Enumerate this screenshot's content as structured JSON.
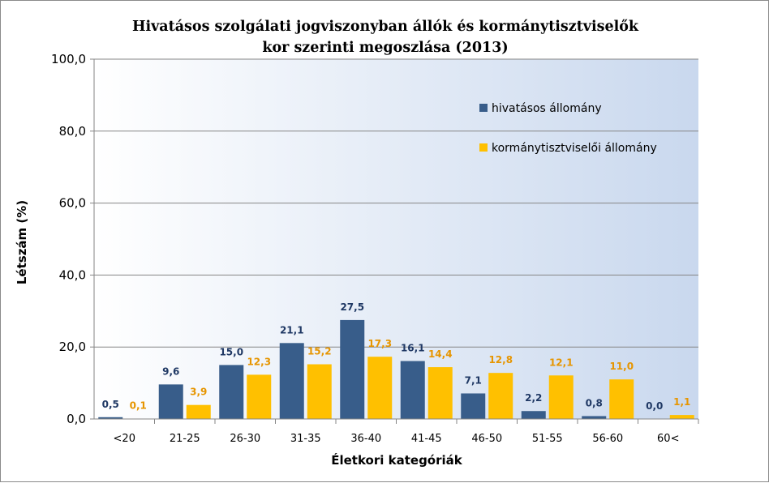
{
  "chart_data": {
    "type": "bar",
    "title_line1": "Hivatásos szolgálati jogviszonyban állók és kormánytisztviselők",
    "title_line2": "kor szerinti megoszlása (2013)",
    "xlabel": "Életkori kategóriák",
    "ylabel": "Létszám (%)",
    "ylim": [
      0,
      100
    ],
    "yticks": [
      "0,0",
      "20,0",
      "40,0",
      "60,0",
      "80,0",
      "100,0"
    ],
    "categories": [
      "<20",
      "21-25",
      "26-30",
      "31-35",
      "36-40",
      "41-45",
      "46-50",
      "51-55",
      "56-60",
      "60<"
    ],
    "series": [
      {
        "name": "hivatásos állomány",
        "color": "#385D8A",
        "labelColor": "#1F3864",
        "values": [
          0.5,
          9.6,
          15.0,
          21.1,
          27.5,
          16.1,
          7.1,
          2.2,
          0.8,
          0.0
        ],
        "labels": [
          "0,5",
          "9,6",
          "15,0",
          "21,1",
          "27,5",
          "16,1",
          "7,1",
          "2,2",
          "0,8",
          "0,0"
        ]
      },
      {
        "name": "kormánytisztviselői állomány",
        "color": "#FFC000",
        "labelColor": "#E69500",
        "values": [
          0.1,
          3.9,
          12.3,
          15.2,
          17.3,
          14.4,
          12.8,
          12.1,
          11.0,
          1.1
        ],
        "labels": [
          "0,1",
          "3,9",
          "12,3",
          "15,2",
          "17,3",
          "14,4",
          "12,8",
          "12,1",
          "11,0",
          "1,1"
        ]
      }
    ],
    "grid": true,
    "legend_position": "top-right",
    "background": "#DCE6F2"
  }
}
